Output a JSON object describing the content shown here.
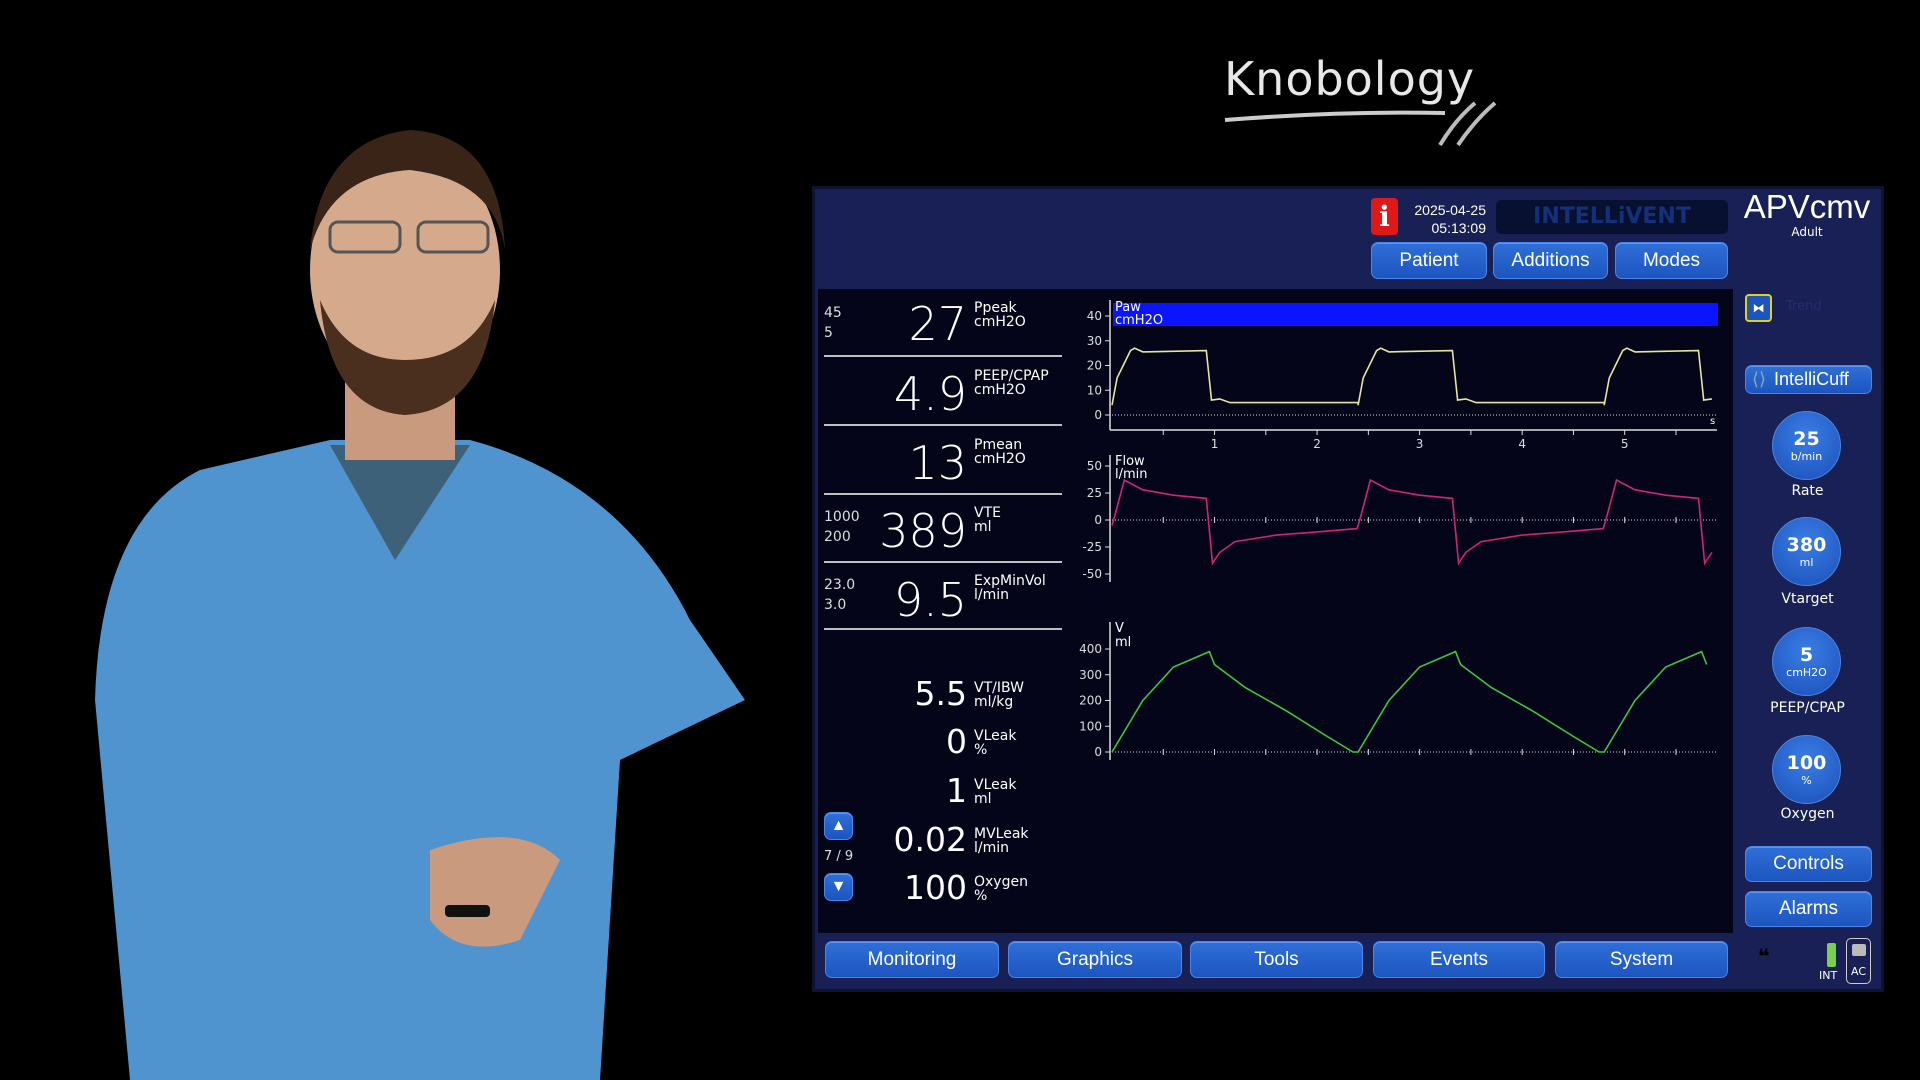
{
  "overlay_title": "Knobology",
  "header": {
    "date": "2025-04-25",
    "time": "05:13:09",
    "brand": "INTELLiVENT",
    "mode": "APVcmv",
    "patient_type": "Adult",
    "buttons": [
      "Patient",
      "Additions",
      "Modes"
    ]
  },
  "readouts": [
    {
      "value": "27",
      "name": "Ppeak",
      "unit": "cmH2O",
      "limit_high": "45",
      "limit_low": "5"
    },
    {
      "value": "4.9",
      "name": "PEEP/CPAP",
      "unit": "cmH2O"
    },
    {
      "value": "13",
      "name": "Pmean",
      "unit": "cmH2O"
    },
    {
      "value": "389",
      "name": "VTE",
      "unit": "ml",
      "limit_high": "1000",
      "limit_low": "200"
    },
    {
      "value": "9.5",
      "name": "ExpMinVol",
      "unit": "l/min",
      "limit_high": "23.0",
      "limit_low": "3.0"
    }
  ],
  "secondary": [
    {
      "value": "5.5",
      "name": "VT/IBW",
      "unit": "ml/kg"
    },
    {
      "value": "0",
      "name": "VLeak",
      "unit": "%"
    },
    {
      "value": "1",
      "name": "VLeak",
      "unit": "ml"
    },
    {
      "value": "0.02",
      "name": "MVLeak",
      "unit": "l/min"
    },
    {
      "value": "100",
      "name": "Oxygen",
      "unit": "%"
    }
  ],
  "page_indicator": "7 / 9",
  "right": {
    "trend": "Trend",
    "intellicuff": "IntelliCuff",
    "controls": [
      {
        "value": "25",
        "unit": "b/min",
        "label": "Rate"
      },
      {
        "value": "380",
        "unit": "ml",
        "label": "Vtarget"
      },
      {
        "value": "5",
        "unit": "cmH2O",
        "label": "PEEP/CPAP"
      },
      {
        "value": "100",
        "unit": "%",
        "label": "Oxygen"
      }
    ],
    "controls_btn": "Controls",
    "alarms_btn": "Alarms",
    "int": "INT",
    "ac": "AC"
  },
  "tabs": [
    "Monitoring",
    "Graphics",
    "Tools",
    "Events",
    "System"
  ],
  "colors": {
    "paw": "#e6e6a0",
    "flow": "#d0247a",
    "volume": "#3cc83c",
    "alarm_bar": "#0a14ff"
  },
  "chart_data": [
    {
      "type": "line",
      "title": "Paw",
      "ylabel": "cmH2O",
      "xlabel": "s",
      "ylim": [
        0,
        40
      ],
      "yticks": [
        0,
        10,
        20,
        30,
        40
      ],
      "xticks": [
        1,
        2,
        3,
        4,
        5
      ],
      "xlim": [
        0,
        5.9
      ],
      "breath_period_s": 2.4,
      "cycle": [
        [
          0,
          4
        ],
        [
          0.05,
          15
        ],
        [
          0.18,
          26
        ],
        [
          0.22,
          27
        ],
        [
          0.3,
          25.5
        ],
        [
          0.92,
          26
        ],
        [
          0.97,
          6
        ],
        [
          1.05,
          6.5
        ],
        [
          1.15,
          5
        ],
        [
          2.4,
          5
        ]
      ]
    },
    {
      "type": "line",
      "title": "Flow",
      "ylabel": "l/min",
      "ylim": [
        -50,
        50
      ],
      "yticks": [
        -50,
        -25,
        0,
        25,
        50
      ],
      "xlim": [
        0,
        5.9
      ],
      "breath_period_s": 2.4,
      "cycle": [
        [
          0,
          -5
        ],
        [
          0.03,
          5
        ],
        [
          0.12,
          37
        ],
        [
          0.3,
          28
        ],
        [
          0.6,
          23
        ],
        [
          0.92,
          20
        ],
        [
          0.98,
          -40
        ],
        [
          1.05,
          -30
        ],
        [
          1.2,
          -20
        ],
        [
          1.6,
          -14
        ],
        [
          2.0,
          -11
        ],
        [
          2.39,
          -8
        ]
      ]
    },
    {
      "type": "line",
      "title": "V",
      "ylabel": "ml",
      "ylim": [
        0,
        400
      ],
      "yticks": [
        0,
        100,
        200,
        300,
        400
      ],
      "xlim": [
        0,
        5.9
      ],
      "breath_period_s": 2.4,
      "cycle": [
        [
          0,
          0
        ],
        [
          0.3,
          200
        ],
        [
          0.6,
          330
        ],
        [
          0.95,
          390
        ],
        [
          1.0,
          340
        ],
        [
          1.3,
          250
        ],
        [
          1.7,
          160
        ],
        [
          2.1,
          60
        ],
        [
          2.35,
          0
        ],
        [
          2.4,
          0
        ]
      ]
    }
  ]
}
